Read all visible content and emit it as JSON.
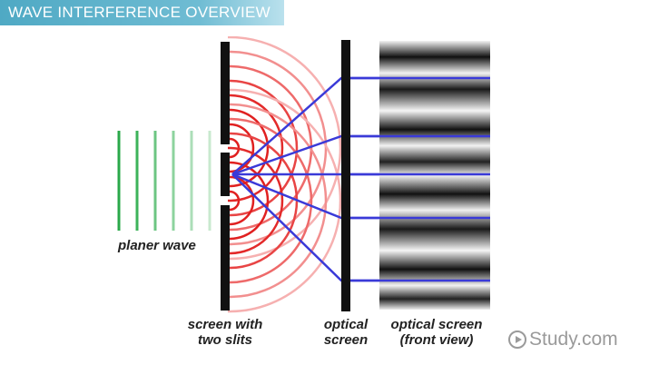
{
  "header": {
    "title": "WAVE INTERFERENCE OVERVIEW"
  },
  "labels": {
    "planar_wave": "planer wave",
    "slit_screen_line1": "screen with",
    "slit_screen_line2": "two slits",
    "optical_screen_line1": "optical",
    "optical_screen_line2": "screen",
    "front_view_line1": "optical screen",
    "front_view_line2": "(front view)"
  },
  "logo": {
    "text": "Study.com",
    "icon": "play-circle-icon"
  },
  "colors": {
    "title_bar": "#4fa9c4",
    "planar_wave": "#2aa84a",
    "wavefronts": "#e02020",
    "rays": "#3a3ad8",
    "screens": "#111111"
  }
}
